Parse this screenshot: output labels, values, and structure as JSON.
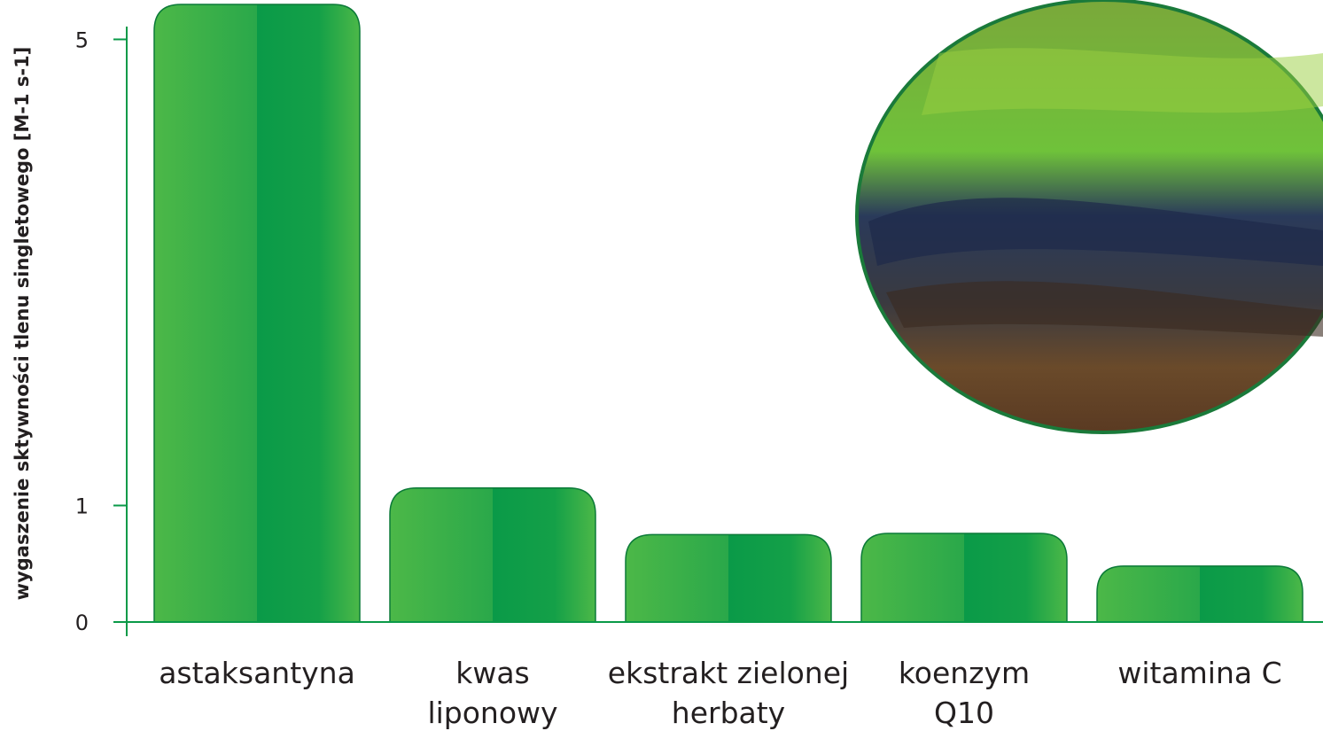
{
  "chart_data": {
    "type": "bar",
    "y_label": "wygaszenie sktywności tlenu singletowego [M-1 s-1]",
    "categories": [
      [
        "astaksantyna"
      ],
      [
        "kwas",
        "liponowy"
      ],
      [
        "ekstrakt zielonej",
        "herbaty"
      ],
      [
        "koenzym",
        "Q10"
      ],
      [
        "witamina C"
      ]
    ],
    "values": [
      5.3,
      1.15,
      0.75,
      0.76,
      0.48
    ],
    "color": "#0a9a48",
    "ylim": [
      0,
      5.3
    ],
    "yticks": [
      0,
      1,
      5
    ]
  }
}
